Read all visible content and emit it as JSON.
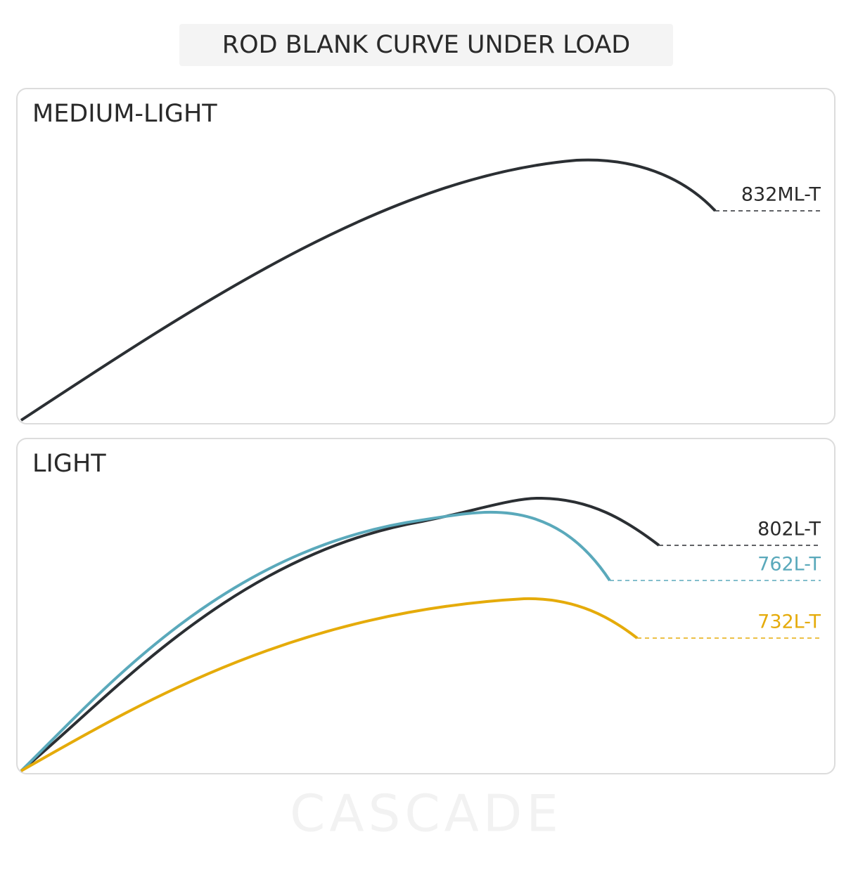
{
  "header": {
    "title": "ROD BLANK CURVE UNDER LOAD"
  },
  "panels": [
    {
      "label": "MEDIUM-LIGHT",
      "curves": [
        {
          "name": "832ML-T"
        }
      ]
    },
    {
      "label": "LIGHT",
      "curves": [
        {
          "name": "802L-T"
        },
        {
          "name": "762L-T"
        },
        {
          "name": "732L-T"
        }
      ]
    }
  ],
  "watermark": "CASCADE"
}
